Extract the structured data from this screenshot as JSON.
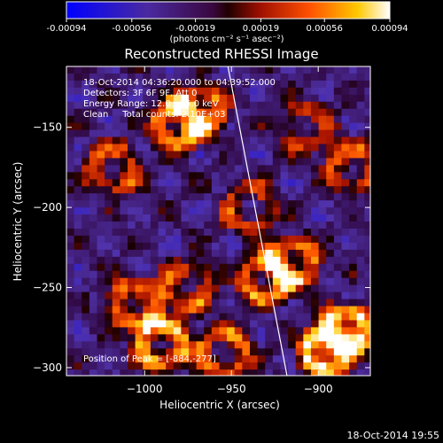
{
  "colorbar": {
    "ticks": [
      "-0.00094",
      "-0.00056",
      "-0.00019",
      "0.00019",
      "0.00056",
      "0.00094"
    ],
    "units_label": "(photons cm⁻² s⁻¹ asec⁻²)",
    "range": [
      -0.00094,
      0.00094
    ]
  },
  "chart_data": {
    "type": "heatmap",
    "title": "Reconstructed RHESSI Image",
    "xlabel": "Heliocentric X (arcsec)",
    "ylabel": "Heliocentric Y (arcsec)",
    "xlim": [
      -1045,
      -870
    ],
    "ylim": [
      -305,
      -112
    ],
    "xticks": [
      -1000,
      -950,
      -900
    ],
    "xtick_labels": [
      "−1000",
      "−950",
      "−900"
    ],
    "yticks": [
      -150,
      -200,
      -250,
      -300
    ],
    "ytick_labels": [
      "−150",
      "−200",
      "−250",
      "−300"
    ],
    "limb_line": {
      "x": [
        -952,
        -918
      ],
      "y": [
        -112,
        -305
      ]
    },
    "annotations": [
      "18-Oct-2014 04:36:20.000 to 04:39:52.000",
      "Detectors: 3F 6F 9F, Att 0",
      "Energy Range: 12.0 - 25.0 keV",
      "Clean     Total counts: 2.10E+03"
    ],
    "peak_label": "Position of Peak = [-884,-277]",
    "hot_spots": [
      {
        "x": -1018,
        "y": -175,
        "v": 0.6
      },
      {
        "x": -980,
        "y": -148,
        "v": 0.8
      },
      {
        "x": -968,
        "y": -140,
        "v": 0.7
      },
      {
        "x": -1005,
        "y": -260,
        "v": 0.7
      },
      {
        "x": -990,
        "y": -285,
        "v": 0.9
      },
      {
        "x": -975,
        "y": -250,
        "v": 0.6
      },
      {
        "x": -955,
        "y": -290,
        "v": 0.7
      },
      {
        "x": -930,
        "y": -245,
        "v": 0.7
      },
      {
        "x": -915,
        "y": -235,
        "v": 0.8
      },
      {
        "x": -895,
        "y": -290,
        "v": 1.0
      },
      {
        "x": -884,
        "y": -277,
        "v": 1.0
      },
      {
        "x": -880,
        "y": -175,
        "v": 0.6
      },
      {
        "x": -905,
        "y": -150,
        "v": 0.5
      },
      {
        "x": -940,
        "y": -200,
        "v": 0.5
      }
    ]
  },
  "footer": {
    "timestamp": "18-Oct-2014 19:55"
  }
}
